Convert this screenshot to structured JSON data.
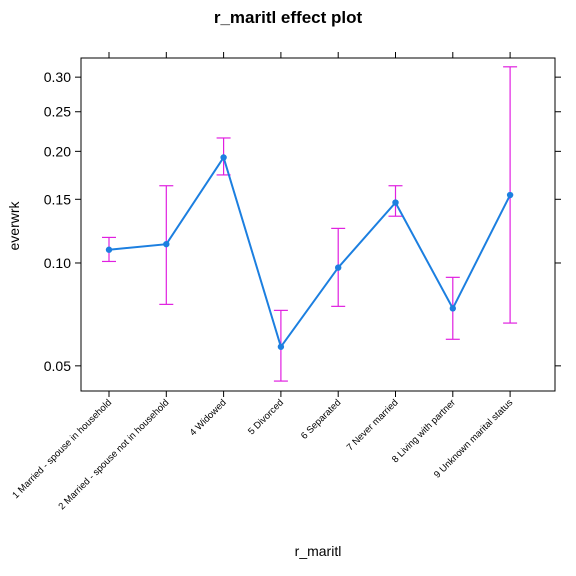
{
  "chart_data": {
    "type": "line",
    "title": "r_maritl effect plot",
    "xlabel": "r_maritl",
    "ylabel": "everwrk",
    "categories": [
      "1 Married - spouse in household",
      "2 Married - spouse not in household",
      "4 Widowed",
      "5 Divorced",
      "6 Separated",
      "7 Never married",
      "8 Living with partner",
      "9 Unknown marital status"
    ],
    "values": [
      0.109,
      0.113,
      0.193,
      0.057,
      0.097,
      0.147,
      0.074,
      0.154
    ],
    "lower": [
      0.101,
      0.076,
      0.174,
      0.045,
      0.075,
      0.135,
      0.06,
      0.067
    ],
    "upper": [
      0.118,
      0.163,
      0.216,
      0.073,
      0.125,
      0.163,
      0.091,
      0.316
    ],
    "y_ticks": [
      0.05,
      0.1,
      0.15,
      0.2,
      0.25,
      0.3
    ],
    "y_tick_labels": [
      "0.05",
      "0.10",
      "0.15",
      "0.20",
      "0.25",
      "0.30"
    ],
    "ylim": [
      0.042,
      0.33
    ],
    "y_scale": "logit",
    "grid": false,
    "line_color": "#1c7fe0",
    "errorbar_color": "#e020e0"
  }
}
